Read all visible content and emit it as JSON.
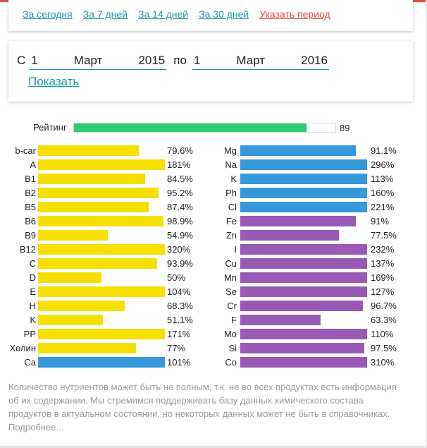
{
  "periods": {
    "links": [
      "За сегодня",
      "За 7 дней",
      "За 14 дней",
      "За 30 дней"
    ],
    "custom": "Указать период"
  },
  "range": {
    "from_label": "С",
    "to_label": "по",
    "from": {
      "day": "1",
      "month": "Март",
      "year": "2015"
    },
    "to": {
      "day": "1",
      "month": "Март",
      "year": "2016"
    },
    "show_label": "Показать"
  },
  "rating": {
    "label": "Рейтинг",
    "value": "89",
    "percent": 89
  },
  "colors": {
    "vitamin": "#f5e000",
    "mineral_blue": "#3498db",
    "mineral_purple": "#9b59b6",
    "rating": "#2ecc71",
    "accent": "#1a9aa8",
    "warning": "#e74c3c"
  },
  "left_nutrients": [
    {
      "name": "b-car",
      "pct": "79.6%",
      "value": 79.6,
      "color": "yellow"
    },
    {
      "name": "A",
      "pct": "181%",
      "value": 181,
      "color": "yellow"
    },
    {
      "name": "B1",
      "pct": "84.5%",
      "value": 84.5,
      "color": "yellow"
    },
    {
      "name": "B2",
      "pct": "95.2%",
      "value": 95.2,
      "color": "yellow"
    },
    {
      "name": "B5",
      "pct": "87.4%",
      "value": 87.4,
      "color": "yellow"
    },
    {
      "name": "B6",
      "pct": "98.9%",
      "value": 98.9,
      "color": "yellow"
    },
    {
      "name": "B9",
      "pct": "54.9%",
      "value": 54.9,
      "color": "yellow"
    },
    {
      "name": "B12",
      "pct": "320%",
      "value": 320,
      "color": "yellow"
    },
    {
      "name": "C",
      "pct": "93.9%",
      "value": 93.9,
      "color": "yellow"
    },
    {
      "name": "D",
      "pct": "50%",
      "value": 50,
      "color": "yellow"
    },
    {
      "name": "E",
      "pct": "104%",
      "value": 104,
      "color": "yellow"
    },
    {
      "name": "H",
      "pct": "68.3%",
      "value": 68.3,
      "color": "yellow"
    },
    {
      "name": "K",
      "pct": "51.1%",
      "value": 51.1,
      "color": "yellow"
    },
    {
      "name": "PP",
      "pct": "171%",
      "value": 171,
      "color": "yellow"
    },
    {
      "name": "Холин",
      "pct": "77%",
      "value": 77,
      "color": "yellow"
    },
    {
      "name": "Ca",
      "pct": "101%",
      "value": 101,
      "color": "blue"
    }
  ],
  "right_nutrients": [
    {
      "name": "Mg",
      "pct": "91.1%",
      "value": 91.1,
      "color": "blue"
    },
    {
      "name": "Na",
      "pct": "296%",
      "value": 296,
      "color": "blue"
    },
    {
      "name": "K",
      "pct": "113%",
      "value": 113,
      "color": "blue"
    },
    {
      "name": "Ph",
      "pct": "160%",
      "value": 160,
      "color": "blue"
    },
    {
      "name": "Cl",
      "pct": "221%",
      "value": 221,
      "color": "blue"
    },
    {
      "name": "Fe",
      "pct": "91%",
      "value": 91,
      "color": "purple"
    },
    {
      "name": "Zn",
      "pct": "77.5%",
      "value": 77.5,
      "color": "purple"
    },
    {
      "name": "I",
      "pct": "232%",
      "value": 232,
      "color": "purple"
    },
    {
      "name": "Cu",
      "pct": "137%",
      "value": 137,
      "color": "purple"
    },
    {
      "name": "Mn",
      "pct": "169%",
      "value": 169,
      "color": "purple"
    },
    {
      "name": "Se",
      "pct": "127%",
      "value": 127,
      "color": "purple"
    },
    {
      "name": "Cr",
      "pct": "96.7%",
      "value": 96.7,
      "color": "purple"
    },
    {
      "name": "F",
      "pct": "63.3%",
      "value": 63.3,
      "color": "purple"
    },
    {
      "name": "Mo",
      "pct": "110%",
      "value": 110,
      "color": "purple"
    },
    {
      "name": "Si",
      "pct": "97.5%",
      "value": 97.5,
      "color": "purple"
    },
    {
      "name": "Co",
      "pct": "310%",
      "value": 310,
      "color": "purple"
    }
  ],
  "footnote": "Количество нутриентов может быть не полным, т.к. не во всех продуктах есть информация об их содержании. Мы стремимся поддерживать базу данных химического состава продуктов в актуальном состоянии, но некоторых данных может не быть в справочниках. Подробнее..."
}
